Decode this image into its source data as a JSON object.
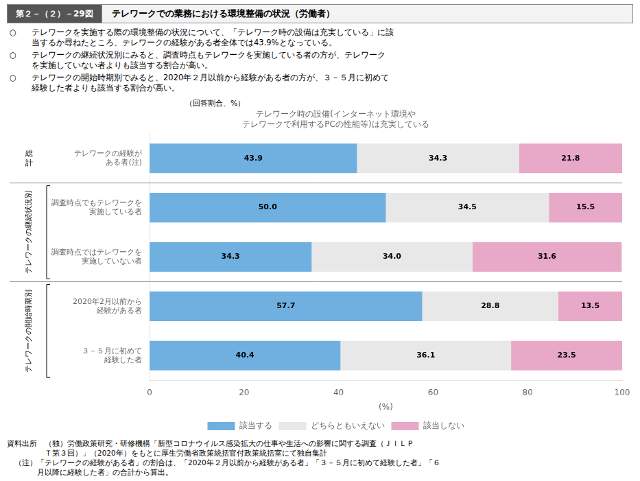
{
  "chart_data": {
    "type": "bar",
    "orientation": "horizontal",
    "stacked": true,
    "data_labels": true,
    "grid": false,
    "legend": "bottom",
    "title": "テレワークでの業務における環境整備の状況（労働者）",
    "subtitle": [
      "テレワーク時の設備(インターネット環境や",
      "テレワークで利用するPCの性能等)は充実している"
    ],
    "x_label": "(%)",
    "categories": [
      "テレワークの経験が\nある者(注)",
      "調査時点でもテレワークを\n実施している者",
      "調査時点ではテレワークを\n実施していない者",
      "2020年2月以前から\n経験がある者",
      "３－５月に初めて\n経験した者"
    ],
    "series": [
      {
        "name": "該当する",
        "color": "#70B0E0",
        "values": [
          43.9,
          50.0,
          34.3,
          57.7,
          40.4
        ],
        "value_labels": [
          "43.9",
          "50.0",
          "34.3",
          "57.7",
          "40.4"
        ]
      },
      {
        "name": "どちらともいえない",
        "color": "#E8E8E8",
        "values": [
          34.3,
          34.5,
          34.0,
          28.8,
          36.1
        ],
        "value_labels": [
          "34.3",
          "34.5",
          "34.0",
          "28.8",
          "36.1"
        ]
      },
      {
        "name": "該当しない",
        "color": "#E8A8C8",
        "values": [
          21.8,
          15.5,
          31.6,
          13.5,
          23.5
        ],
        "value_labels": [
          "21.8",
          "15.5",
          "31.6",
          "13.5",
          "23.5"
        ]
      }
    ],
    "xlim": [
      0,
      100
    ],
    "xticks": [
      0,
      20,
      40,
      60,
      80,
      100
    ],
    "annotations": {
      "figure_number": "第２－（２）－29図",
      "bullet_mark": "○",
      "bullets": [
        [
          "　テレワークを実施する際の環境整備の状況について、「テレワーク時の設備は充実している」に該",
          "　当するか尋ねたところ、テレワークの経験がある者全体では43.9%となっている。"
        ],
        [
          "　テレワークの継続状況別にみると、調査時点もテレワークを実施している者の方が、テレワーク",
          "　を実施していない者よりも該当する割合が高い。"
        ],
        [
          "　テレワークの開始時期別でみると、2020年２月以前から経験がある者の方が、３－５月に初めて",
          "　経験した者よりも該当する割合が高い。"
        ]
      ],
      "unit": "（回答割合、%）",
      "groups": [
        "総\n計",
        "テレワークの継続状況別",
        "テレワークの継続状況別",
        "テレワークの開始時期別",
        "テレワークの開始時期別"
      ],
      "notes": [
        "資料出所　（独）労働政策研究・研修機構「新型コロナウイルス感染拡大の仕事や生活への影響に関する調査（ＪＩＬＰ",
        "　　　　　Ｔ第３回）」（2020年）をもとに厚生労働省政策統括官付政策統括室にて独自集計",
        "　（注）「テレワークの経験がある者」の割合は、「2020年２月以前から経験がある者」「３－５月に初めて経験した者」「６",
        "　　　　月以降に経験した者」の合計から算出。"
      ]
    }
  }
}
